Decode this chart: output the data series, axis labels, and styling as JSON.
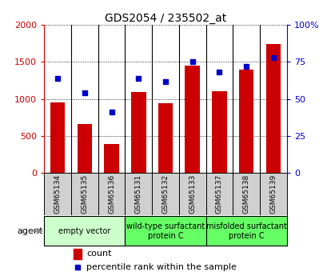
{
  "title": "GDS2054 / 235502_at",
  "samples": [
    "GSM65134",
    "GSM65135",
    "GSM65136",
    "GSM65131",
    "GSM65132",
    "GSM65133",
    "GSM65137",
    "GSM65138",
    "GSM65139"
  ],
  "counts": [
    950,
    660,
    390,
    1090,
    940,
    1450,
    1100,
    1400,
    1740
  ],
  "percentiles": [
    64,
    54,
    41,
    64,
    62,
    75,
    68,
    72,
    78
  ],
  "bar_color": "#cc0000",
  "dot_color": "#0000cc",
  "left_axis_color": "#cc0000",
  "right_axis_color": "#0000cc",
  "ylim_left": [
    0,
    2000
  ],
  "ylim_right": [
    0,
    100
  ],
  "left_ticks": [
    0,
    500,
    1000,
    1500,
    2000
  ],
  "right_ticks": [
    0,
    25,
    50,
    75,
    100
  ],
  "right_tick_labels": [
    "0",
    "25",
    "50",
    "75",
    "100%"
  ],
  "group_data": [
    {
      "label": "empty vector",
      "start": 0,
      "end": 3,
      "color": "#ccffcc"
    },
    {
      "label": "wild-type surfactant\nprotein C",
      "start": 3,
      "end": 6,
      "color": "#66ff66"
    },
    {
      "label": "misfolded surfactant\nprotein C",
      "start": 6,
      "end": 9,
      "color": "#66ff66"
    }
  ],
  "sample_box_color": "#d0d0d0",
  "agent_label": "agent",
  "legend_count_label": "count",
  "legend_pct_label": "percentile rank within the sample",
  "fig_width": 4.1,
  "fig_height": 3.45,
  "dpi": 100
}
